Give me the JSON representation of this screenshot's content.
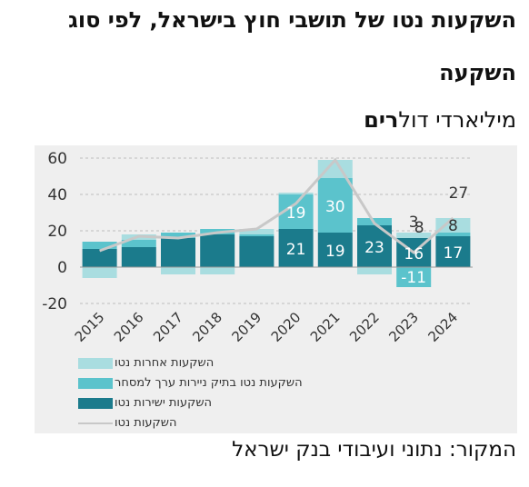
{
  "title_line1": "השקעות נטו של תושבי חוץ בישראל, לפי סוג",
  "title_line2": "השקעה",
  "subtitle_prefix": "מיליארדי דול",
  "subtitle_bold": "רים",
  "source": "המקור: נתוני ועיבודי בנק ישראל",
  "colors": {
    "direct": "#1b7b8c",
    "portfolio": "#5bc3cc",
    "other": "#a9dde0",
    "net": "#c8c8c8",
    "panel": "#efefef"
  },
  "chart_data": {
    "type": "bar",
    "stacked": true,
    "categories": [
      "2015",
      "2016",
      "2017",
      "2018",
      "2019",
      "2020",
      "2021",
      "2022",
      "2023",
      "2024"
    ],
    "ylim": [
      -20,
      60
    ],
    "yticks": [
      "60",
      "40",
      "20",
      "0",
      "-20"
    ],
    "grid": true,
    "series": [
      {
        "name": "השקעות ישירות נטו",
        "key": "direct",
        "values": [
          10,
          11,
          16,
          18,
          17,
          21,
          19,
          23,
          16,
          17
        ]
      },
      {
        "name": "השקעות נטו בתיק ניירות ערך למסחר",
        "key": "portfolio",
        "values": [
          4,
          4,
          3,
          3,
          1,
          19,
          30,
          4,
          -11,
          2
        ]
      },
      {
        "name": "השקעות אחרות נטו",
        "key": "other",
        "values": [
          -6,
          3,
          -4,
          -4,
          3,
          1,
          10,
          -4,
          3,
          8
        ]
      },
      {
        "name": "השקעות נטו",
        "key": "net",
        "type": "line",
        "values": [
          9,
          17,
          16,
          19,
          21,
          35,
          59,
          24,
          8,
          27
        ]
      }
    ],
    "data_labels": [
      {
        "category": "2020",
        "series": "direct",
        "text": "21"
      },
      {
        "category": "2020",
        "series": "portfolio",
        "text": "19"
      },
      {
        "category": "2021",
        "series": "direct",
        "text": "19"
      },
      {
        "category": "2021",
        "series": "portfolio",
        "text": "30"
      },
      {
        "category": "2022",
        "series": "direct",
        "text": "23"
      },
      {
        "category": "2023",
        "series": "direct",
        "text": "16"
      },
      {
        "category": "2023",
        "series": "portfolio",
        "text": "-11"
      },
      {
        "category": "2023",
        "series": "other",
        "text": "3"
      },
      {
        "category": "2023",
        "series": "net",
        "text": "8"
      },
      {
        "category": "2024",
        "series": "direct",
        "text": "17"
      },
      {
        "category": "2024",
        "series": "other",
        "text": "8"
      },
      {
        "category": "2024",
        "series": "net",
        "text": "27"
      }
    ],
    "legend_position": "bottom-left"
  }
}
